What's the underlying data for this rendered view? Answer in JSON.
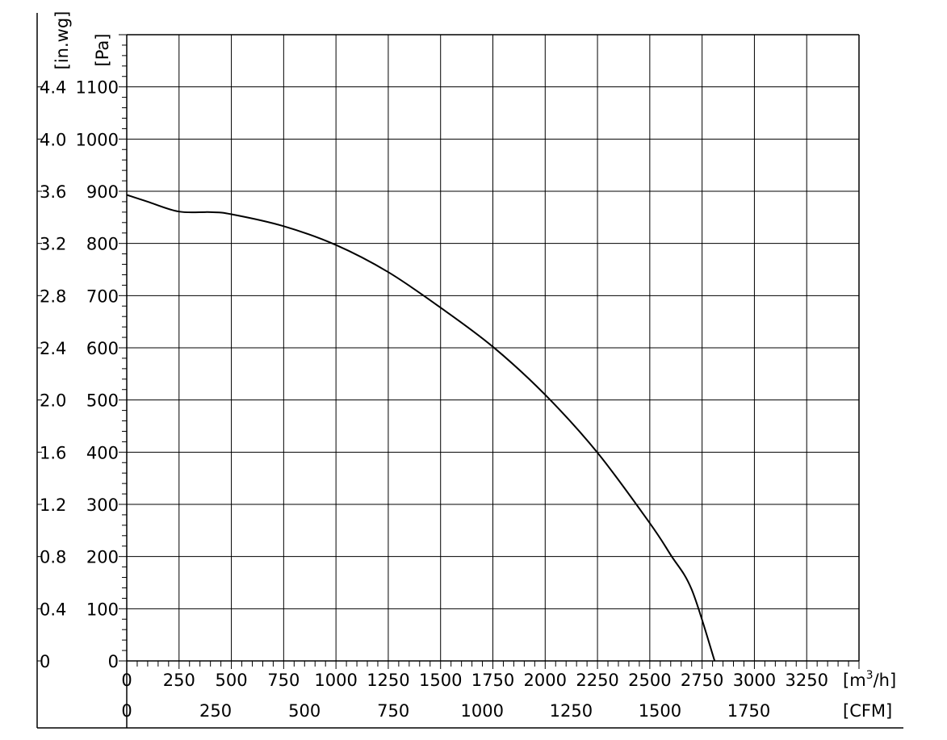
{
  "chart_data": {
    "type": "line",
    "title": "",
    "x_axis_primary": {
      "unit": "[m³/h]",
      "unit_base": "[m",
      "unit_sup": "3",
      "unit_tail": "/h]",
      "range": [
        0,
        3500
      ],
      "ticks": [
        0,
        250,
        500,
        750,
        1000,
        1250,
        1500,
        1750,
        2000,
        2250,
        2500,
        2750,
        3000,
        3250
      ],
      "tick_labels": [
        "0",
        "250",
        "500",
        "750",
        "1000",
        "1250",
        "1500",
        "1750",
        "2000",
        "2250",
        "2500",
        "2750",
        "3000",
        "3250"
      ]
    },
    "x_axis_secondary": {
      "unit": "[CFM]",
      "ticks": [
        0,
        250,
        500,
        750,
        1000,
        1250,
        1500,
        1750
      ],
      "tick_labels": [
        "0",
        "250",
        "500",
        "750",
        "1000",
        "1250",
        "1500",
        "1750"
      ]
    },
    "y_axis_primary": {
      "unit": "[Pa]",
      "range": [
        0,
        1200
      ],
      "ticks": [
        0,
        100,
        200,
        300,
        400,
        500,
        600,
        700,
        800,
        900,
        1000,
        1100
      ],
      "tick_labels": [
        "0",
        "100",
        "200",
        "300",
        "400",
        "500",
        "600",
        "700",
        "800",
        "900",
        "1000",
        "1100"
      ]
    },
    "y_axis_secondary": {
      "unit": "[in.wg]",
      "ticks": [
        0,
        0.4,
        0.8,
        1.2,
        1.6,
        2.0,
        2.4,
        2.8,
        3.2,
        3.6,
        4.0,
        4.4
      ],
      "tick_labels": [
        "0",
        "0.4",
        "0.8",
        "1.2",
        "1.6",
        "2.0",
        "2.4",
        "2.8",
        "3.2",
        "3.6",
        "4.0",
        "4.4"
      ]
    },
    "grid": true,
    "series": [
      {
        "x": [
          0,
          100,
          250,
          400,
          500,
          750,
          1000,
          1250,
          1500,
          1750,
          2000,
          2250,
          2500,
          2600,
          2700,
          2810
        ],
        "y": [
          893,
          880,
          861,
          860,
          856,
          833,
          797,
          745,
          677,
          602,
          510,
          399,
          264,
          203,
          137,
          0
        ]
      }
    ],
    "colors": {
      "line": "#000000",
      "grid": "#000000",
      "background": "#ffffff"
    }
  }
}
